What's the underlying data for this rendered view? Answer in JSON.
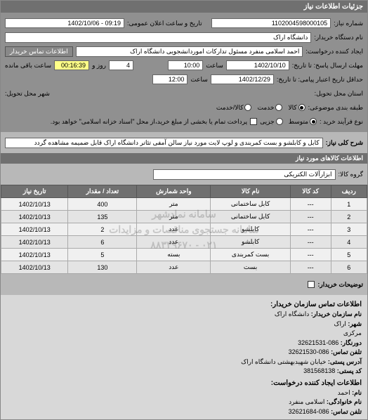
{
  "header": {
    "title": "جزئیات اطلاعات نیاز"
  },
  "form": {
    "req_no_label": "شماره نیاز:",
    "req_no": "1102004598000105",
    "announce_label": "تاریخ و ساعت اعلان عمومی:",
    "announce_value": "09:19 - 1402/10/06",
    "buyer_org_label": "نام دستگاه خریدار:",
    "buyer_org": "دانشگاه اراک",
    "requester_label": "ایجاد کننده درخواست:",
    "requester": "احمد اسلامی منفرد مسئول تدارکات اموردانشجویی دانشگاه اراک",
    "contact_btn": "اطلاعات تماس خریدار",
    "deadline_from_label": "مهلت ارسال پاسخ: تا تاریخ:",
    "deadline_date": "1402/10/10",
    "time_label": "ساعت",
    "deadline_time": "10:00",
    "remain_label": "روز و",
    "remain_days": "4",
    "remain_time_label": "ساعت باقی مانده",
    "remain_time": "00:16:39",
    "valid_from_label": "حداقل تاریخ اعتبار پیامی: تا تاریخ:",
    "valid_date": "1402/12/29",
    "valid_time": "12:00",
    "loc_state_label": "استان محل تحویل:",
    "loc_city_label": "شهر محل تحویل:",
    "pkg_label": "طبقه بندی موضوعی:",
    "pkg_options": {
      "kala": "کالا",
      "service": "خدمت",
      "both": "کالا/خدمت"
    },
    "pkg_selected": "kala",
    "pay_label": "نوع فرآیند خرید :",
    "pay_options": {
      "low": "متوسط",
      "mid": "جزیی"
    },
    "pay_selected": "low",
    "pay_note": "پرداخت تمام یا بخشی از مبلغ خرید،از محل \"اسناد خزانه اسلامی\" خواهد بود."
  },
  "need": {
    "label": "شرح کلی نیاز:",
    "text": "کابل و کابلشو و بست کمربندی و لوپ لایت مورد نیاز سالن آمفی تئاتر دانشگاه اراک قابل ضمیمه مشاهده گردد"
  },
  "goods": {
    "header": "اطلاعات کالاهای مورد نیاز",
    "group_label": "گروه کالا:",
    "group_value": "ابزارآلات الکتریکی",
    "columns": [
      "ردیف",
      "کد کالا",
      "نام کالا",
      "واحد شمارش",
      "تعداد / مقدار",
      "تاریخ نیاز"
    ],
    "rows": [
      [
        "1",
        "---",
        "کابل ساختمانی",
        "متر",
        "400",
        "1402/10/13"
      ],
      [
        "2",
        "---",
        "کابل ساختمانی",
        "متر",
        "135",
        "1402/10/13"
      ],
      [
        "3",
        "---",
        "کابلشو",
        "عدد",
        "2",
        "1402/10/13"
      ],
      [
        "4",
        "---",
        "کابلشو",
        "عدد",
        "6",
        "1402/10/13"
      ],
      [
        "5",
        "---",
        "بست کمربندی",
        "بسته",
        "5",
        "1402/10/13"
      ],
      [
        "6",
        "---",
        "بست",
        "عدد",
        "130",
        "1402/10/13"
      ]
    ],
    "buyer_note_label": "توضیحات خریدار:"
  },
  "watermark": {
    "line1": "سامانه نمادشهر",
    "line2": "سامانه جستجوی مناقصات و مزایدات",
    "line3": "۰۲۱ - ۸۸۳۴۹۶۷۰"
  },
  "contact": {
    "header": "اطلاعات تماس سازمان خریدار:",
    "org_label": "نام سازمان خریدار:",
    "org": "دانشگاه اراک",
    "city_label": "شهر:",
    "city": "اراک",
    "state_label": "مرکزی",
    "phone_label": "دورنگار:",
    "phone": "086-32621531",
    "fax_label": "تلفن تماس:",
    "fax": "086-32621530",
    "addr_label": "آدرس پستی:",
    "addr": "خیابان شهیدبهشتی دانشگاه اراک",
    "post_label": "کد پستی:",
    "post": "381568138",
    "creator_header": "اطلاعات ایجاد کننده درخواست:",
    "name_label": "نام:",
    "name": "احمد",
    "family_label": "نام خانوادگی:",
    "family": "اسلامی منفرد",
    "tel_label": "تلفن تماس:",
    "tel": "086-32621684"
  }
}
